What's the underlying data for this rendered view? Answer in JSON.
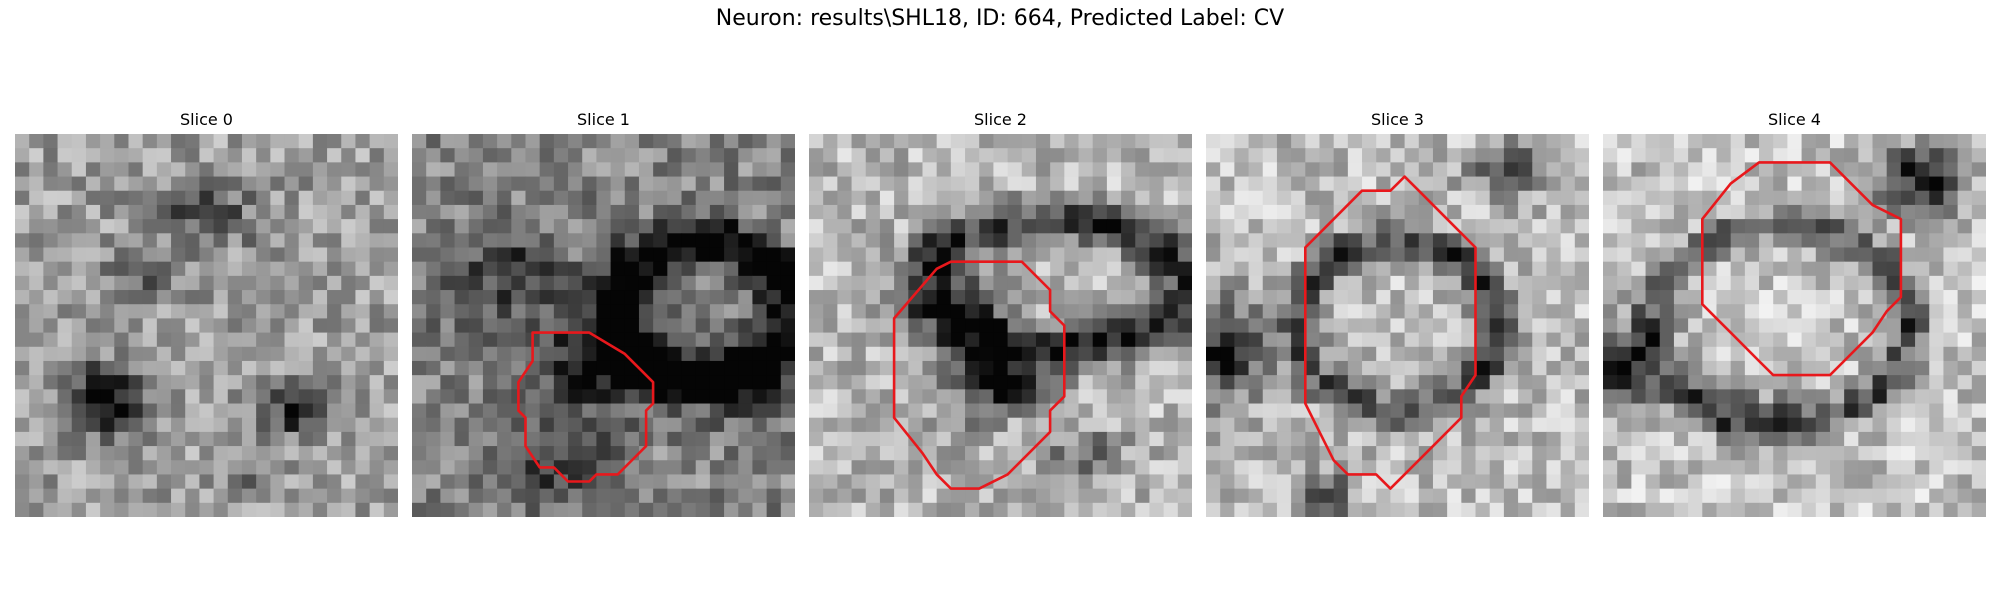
{
  "figure": {
    "suptitle": "Neuron: results\\SHL18, ID: 664, Predicted Label: CV"
  },
  "panels": [
    {
      "title": "Slice 0",
      "has_contour": false
    },
    {
      "title": "Slice 1",
      "has_contour": true
    },
    {
      "title": "Slice 2",
      "has_contour": true
    },
    {
      "title": "Slice 3",
      "has_contour": true
    },
    {
      "title": "Slice 4",
      "has_contour": true
    }
  ],
  "colors": {
    "contour": "#e8181c",
    "image_colormap": "grayscale"
  }
}
